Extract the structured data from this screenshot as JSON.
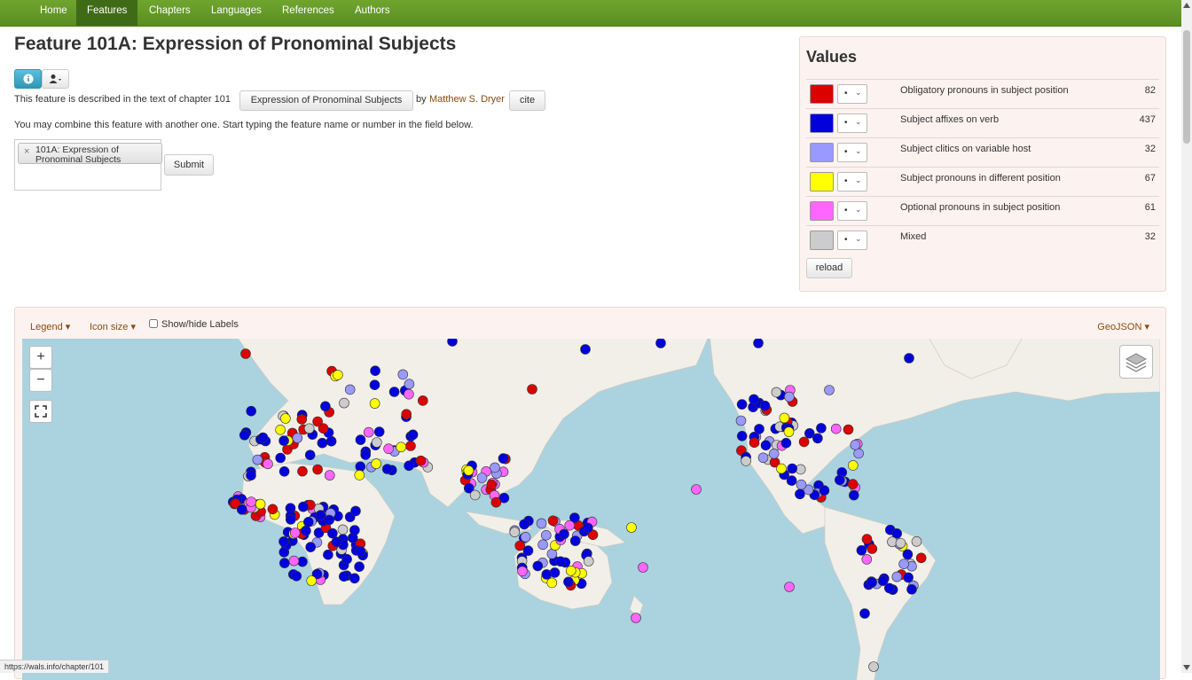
{
  "nav": {
    "items": [
      "Home",
      "Features",
      "Chapters",
      "Languages",
      "References",
      "Authors"
    ],
    "active": "Features"
  },
  "page": {
    "title": "Feature 101A: Expression of Pronominal Subjects",
    "described_prefix": "This feature is described in the text of chapter 101",
    "chapter_button": "Expression of Pronominal Subjects",
    "by": "by",
    "author": "Matthew S. Dryer",
    "cite": "cite",
    "combine_text": "You may combine this feature with another one. Start typing the feature name or number in the field below.",
    "selected_feature_line1": "101A: Expression of",
    "selected_feature_line2": "Pronominal Subjects",
    "submit": "Submit"
  },
  "values": {
    "title": "Values",
    "items": [
      {
        "color": "#dd0000",
        "label": "Obligatory pronouns in subject position",
        "count": "82"
      },
      {
        "color": "#0000dd",
        "label": "Subject affixes on verb",
        "count": "437"
      },
      {
        "color": "#9999ff",
        "label": "Subject clitics on variable host",
        "count": "32"
      },
      {
        "color": "#ffff00",
        "label": "Subject pronouns in different position",
        "count": "67"
      },
      {
        "color": "#ff66ff",
        "label": "Optional pronouns in subject position",
        "count": "61"
      },
      {
        "color": "#cccccc",
        "label": "Mixed",
        "count": "32"
      }
    ],
    "select_glyph": "•",
    "reload": "reload"
  },
  "map": {
    "legend": "Legend",
    "icon_size": "Icon size",
    "labels_toggle": "Show/hide Labels",
    "geojson": "GeoJSON",
    "zoom_in": "+",
    "zoom_out": "−"
  },
  "status_url": "https://wals.info/chapter/101"
}
